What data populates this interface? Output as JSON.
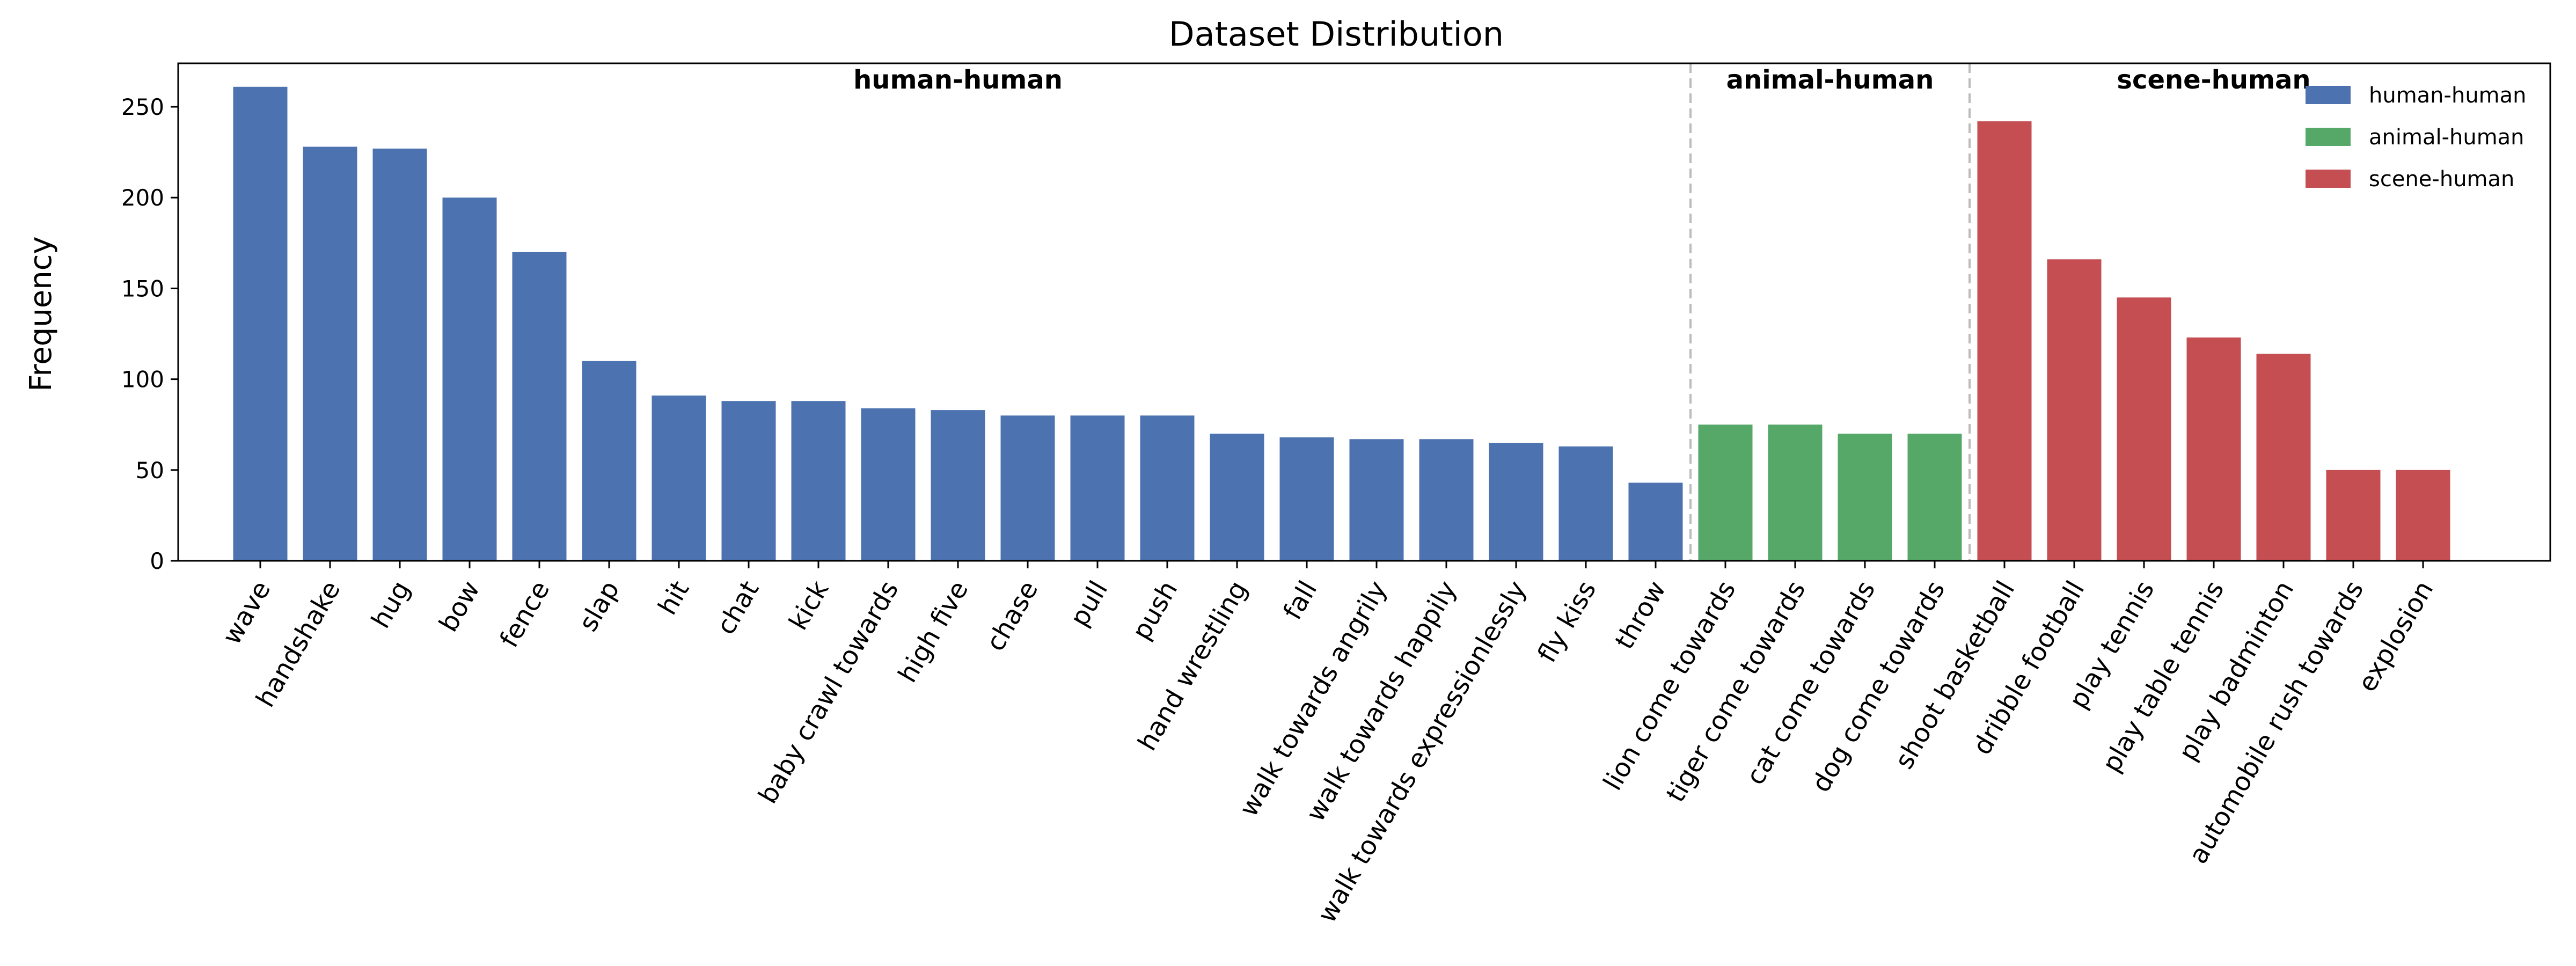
{
  "chart_data": {
    "type": "bar",
    "title": "Dataset Distribution",
    "xlabel": "",
    "ylabel": "Frequency",
    "ylim": [
      0,
      275
    ],
    "yticks": [
      0,
      50,
      100,
      150,
      200,
      250
    ],
    "grid": false,
    "legend_position": "top-right",
    "groups": [
      {
        "name": "human-human",
        "color": "#4c72b0",
        "categories": [
          "wave",
          "handshake",
          "hug",
          "bow",
          "fence",
          "slap",
          "hit",
          "chat",
          "kick",
          "baby crawl towards",
          "high five",
          "chase",
          "pull",
          "push",
          "hand wrestling",
          "fall",
          "walk towards angrily",
          "walk towards happily",
          "walk towards expressionlessly",
          "fly kiss",
          "throw"
        ],
        "values": [
          261,
          228,
          227,
          200,
          170,
          110,
          91,
          88,
          88,
          84,
          83,
          80,
          80,
          80,
          70,
          68,
          67,
          67,
          65,
          63,
          43
        ]
      },
      {
        "name": "animal-human",
        "color": "#55a868",
        "categories": [
          "lion come towards",
          "tiger come towards",
          "cat come towards",
          "dog come towards"
        ],
        "values": [
          75,
          75,
          70,
          70
        ]
      },
      {
        "name": "scene-human",
        "color": "#c44e52",
        "categories": [
          "shoot basketball",
          "dribble football",
          "play tennis",
          "play table tennis",
          "play badminton",
          "automobile rush towards",
          "explosion"
        ],
        "values": [
          242,
          166,
          145,
          123,
          114,
          50,
          50
        ]
      }
    ]
  }
}
